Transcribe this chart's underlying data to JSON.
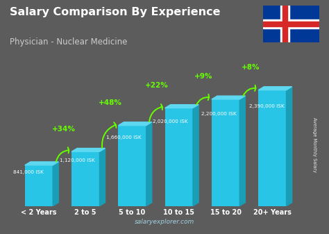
{
  "title": "Salary Comparison By Experience",
  "subtitle": "Physician - Nuclear Medicine",
  "categories": [
    "< 2 Years",
    "2 to 5",
    "5 to 10",
    "10 to 15",
    "15 to 20",
    "20+ Years"
  ],
  "values": [
    841000,
    1120000,
    1660000,
    2020000,
    2200000,
    2390000
  ],
  "value_labels": [
    "841,000 ISK",
    "1,120,000 ISK",
    "1,660,000 ISK",
    "2,020,000 ISK",
    "2,200,000 ISK",
    "2,390,000 ISK"
  ],
  "pct_changes": [
    "+34%",
    "+48%",
    "+22%",
    "+9%",
    "+8%"
  ],
  "bar_color_face": "#29c5e6",
  "bar_color_top": "#5dd8f0",
  "bar_color_right": "#1a9eb8",
  "bg_color": "#5c5c5c",
  "title_color": "#ffffff",
  "subtitle_color": "#cccccc",
  "label_color": "#ffffff",
  "pct_color": "#66ff00",
  "watermark": "salaryexplorer.com",
  "watermark_color": "#aaddee",
  "ylabel": "Average Monthly Salary",
  "ylim": [
    0,
    2800000
  ],
  "flag_blue": "#003897",
  "flag_red": "#D72828",
  "flag_white": "#ffffff"
}
